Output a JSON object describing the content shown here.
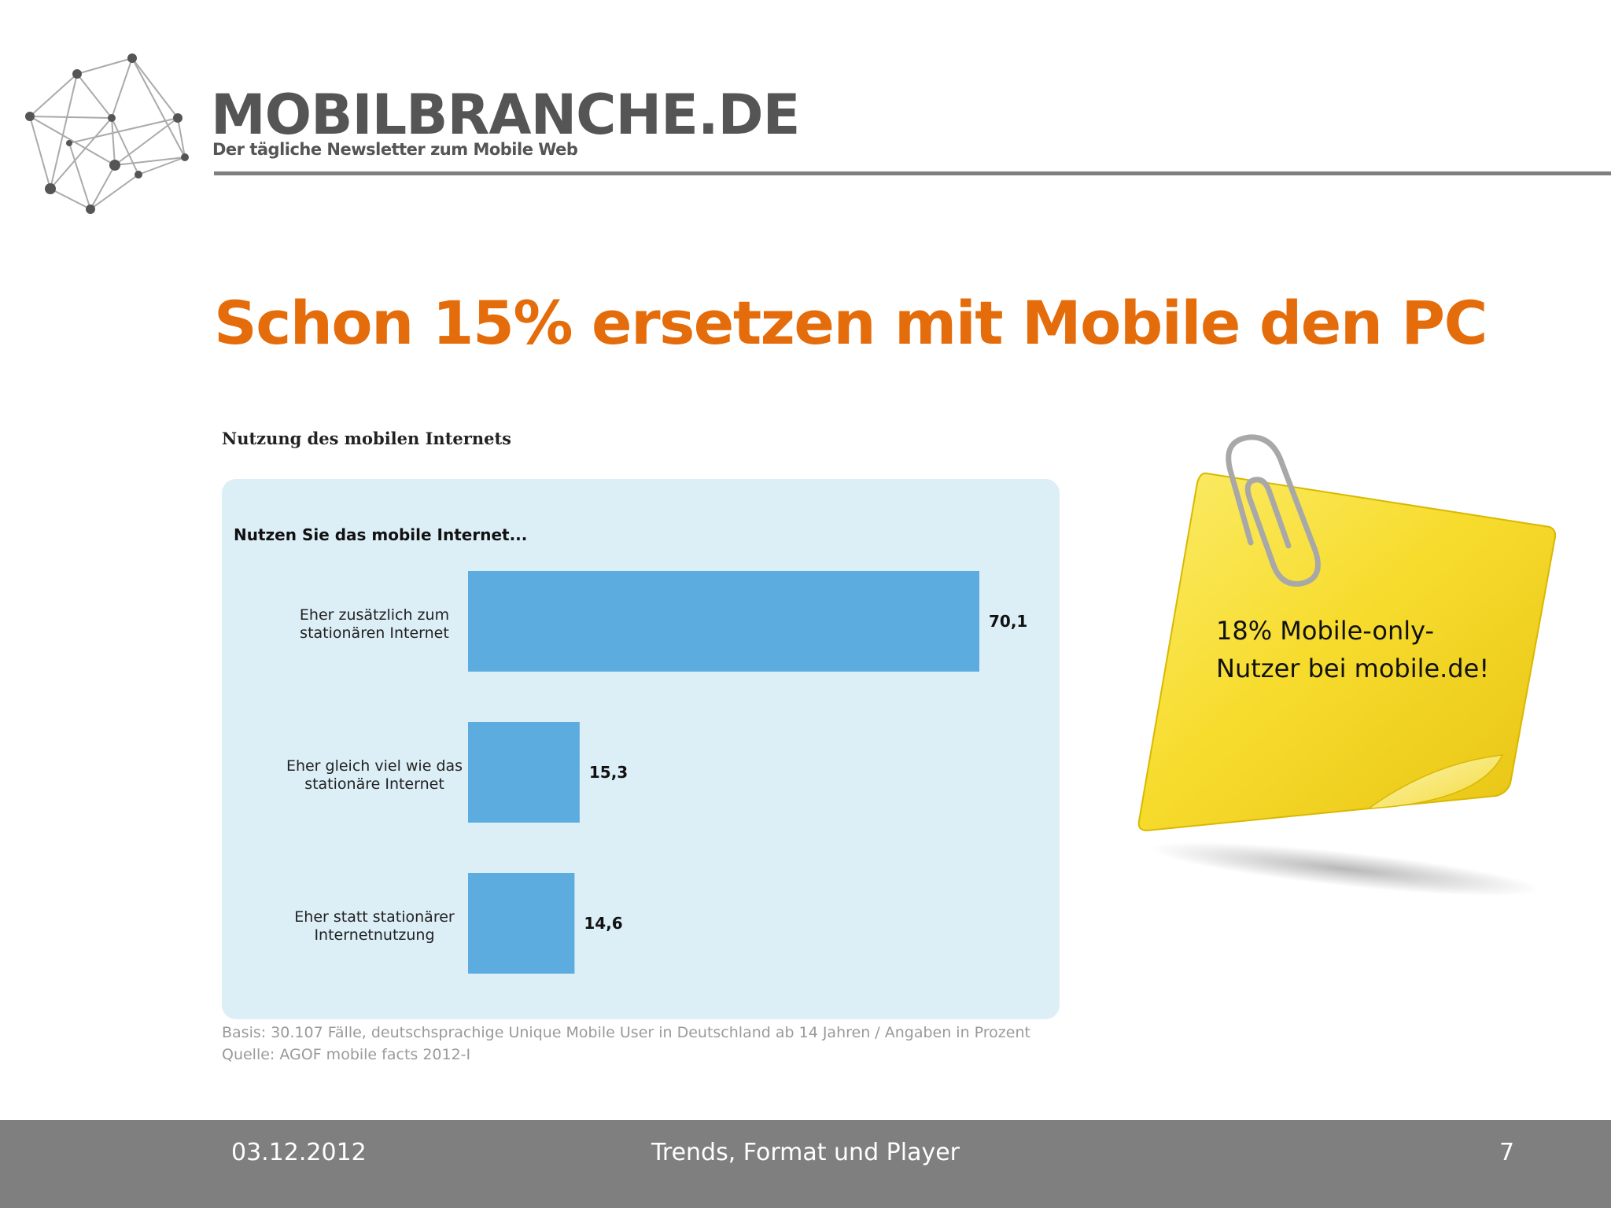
{
  "header": {
    "logo_name": "MOBILBRANCHE.DE",
    "logo_tagline": "Der tägliche Newsletter zum Mobile Web"
  },
  "slide": {
    "title": "Schon 15% ersetzen mit Mobile den PC"
  },
  "chart_data": {
    "type": "bar",
    "orientation": "horizontal",
    "heading": "Nutzung  des mobilen Internets",
    "question": "Nutzen Sie das mobile Internet...",
    "categories": [
      [
        "Eher zusätzlich zum",
        "stationären Internet"
      ],
      [
        "Eher gleich viel wie das",
        "stationäre Internet"
      ],
      [
        "Eher statt stationärer",
        "Internetnutzung"
      ]
    ],
    "values": [
      70.1,
      15.3,
      14.6
    ],
    "value_labels": [
      "70,1",
      "15,3",
      "14,6"
    ],
    "bar_color": "#5dace0",
    "background_color": "#dceef6",
    "grid": false,
    "legend": false
  },
  "footnote": {
    "basis": "Basis: 30.107 Fälle, deutschsprachige Unique Mobile User in Deutschland ab 14 Jahren / Angaben in Prozent",
    "source": "Quelle: AGOF mobile facts 2012-I"
  },
  "sticky_note": {
    "line1": "18% Mobile-only-",
    "line2": "Nutzer bei mobile.de!",
    "color": "#f7dc2e"
  },
  "footer": {
    "date": "03.12.2012",
    "center": "Trends, Format und Player",
    "page_number": "7",
    "color": "#7f7f7f"
  },
  "colors": {
    "title": "#e46c0a",
    "logo_text": "#555555"
  }
}
